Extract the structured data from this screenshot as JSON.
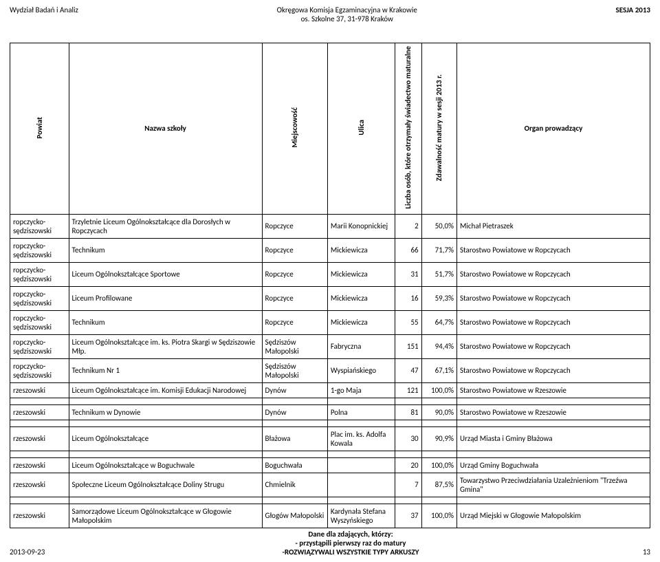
{
  "header": {
    "left": "Wydział Badań i Analiz",
    "center_line1": "Okręgowa Komisja Egzaminacyjna w Krakowie",
    "center_line2": "os. Szkolne 37, 31-978 Kraków",
    "right": "SESJA 2013"
  },
  "columns": {
    "powiat": "Powiat",
    "nazwa": "Nazwa szkoły",
    "miejscowosc": "Miejscowość",
    "ulica": "Ulica",
    "liczba": "Liczba osób, które otrzymały świadectwo maturalne",
    "zdawalnosc": "Zdawalność matury w sesji 2013 r.",
    "organ": "Organ prowadzący"
  },
  "rows": [
    {
      "powiat": "ropczycko-sędziszowski",
      "nazwa": "Trzyletnie Liceum Ogólnokształcące dla Dorosłych w Ropczycach",
      "miej": "Ropczyce",
      "ulica": "Marii Konopnickiej",
      "liczba": "2",
      "zdaw": "50,0%",
      "organ": "Michał Pietraszek"
    },
    {
      "powiat": "ropczycko-sędziszowski",
      "nazwa": "Technikum",
      "miej": "Ropczyce",
      "ulica": "Mickiewicza",
      "liczba": "66",
      "zdaw": "71,7%",
      "organ": "Starostwo Powiatowe w Ropczycach"
    },
    {
      "powiat": "ropczycko-sędziszowski",
      "nazwa": "Liceum Ogólnokształcące Sportowe",
      "miej": "Ropczyce",
      "ulica": "Mickiewicza",
      "liczba": "31",
      "zdaw": "51,7%",
      "organ": "Starostwo Powiatowe w Ropczycach"
    },
    {
      "powiat": "ropczycko-sędziszowski",
      "nazwa": "Liceum Profilowane",
      "miej": "Ropczyce",
      "ulica": "Mickiewicza",
      "liczba": "16",
      "zdaw": "59,3%",
      "organ": "Starostwo Powiatowe w Ropczycach"
    },
    {
      "powiat": "ropczycko-sędziszowski",
      "nazwa": "Technikum",
      "miej": "Ropczyce",
      "ulica": "Mickiewicza",
      "liczba": "55",
      "zdaw": "64,7%",
      "organ": "Starostwo Powiatowe w Ropczycach"
    },
    {
      "powiat": "ropczycko-sędziszowski",
      "nazwa": "Liceum Ogólnokształcące im. ks. Piotra Skargi w Sędziszowie Młp.",
      "miej": "Sędziszów Małopolski",
      "ulica": "Fabryczna",
      "liczba": "151",
      "zdaw": "94,4%",
      "organ": "Starostwo Powiatowe w Ropczycach"
    },
    {
      "powiat": "ropczycko-sędziszowski",
      "nazwa": "Technikum Nr 1",
      "miej": "Sędziszów Małopolski",
      "ulica": "Wyspiańskiego",
      "liczba": "47",
      "zdaw": "67,1%",
      "organ": "Starostwo Powiatowe w Ropczycach"
    },
    {
      "powiat": "rzeszowski",
      "nazwa": "Liceum Ogólnokształcące im. Komisji Edukacji Narodowej",
      "miej": "Dynów",
      "ulica": "1-go Maja",
      "liczba": "121",
      "zdaw": "100,0%",
      "organ": "Starostwo Powiatowe w Rzeszowie"
    },
    {
      "powiat": "rzeszowski",
      "nazwa": "Technikum w Dynowie",
      "miej": "Dynów",
      "ulica": "Polna",
      "liczba": "81",
      "zdaw": "90,0%",
      "organ": "Starostwo Powiatowe w Rzeszowie"
    },
    {
      "powiat": "rzeszowski",
      "nazwa": "Liceum Ogólnokształcące",
      "miej": "Błażowa",
      "ulica": "Plac im. ks. Adolfa Kowala",
      "liczba": "30",
      "zdaw": "90,9%",
      "organ": "Urząd Miasta i Gminy Błażowa"
    },
    {
      "powiat": "rzeszowski",
      "nazwa": "Liceum Ogólnokształcące w Boguchwale",
      "miej": "Boguchwała",
      "ulica": "",
      "liczba": "20",
      "zdaw": "100,0%",
      "organ": "Urząd Gminy Boguchwała"
    },
    {
      "powiat": "rzeszowski",
      "nazwa": "Społeczne Liceum Ogólnokształcące Doliny Strugu",
      "miej": "Chmielnik",
      "ulica": "",
      "liczba": "7",
      "zdaw": "87,5%",
      "organ": "Towarzystwo Przeciwdziałania Uzależnieniom \"Trzeźwa Gmina\""
    },
    {
      "powiat": "rzeszowski",
      "nazwa": "Samorządowe Liceum Ogólnokształcące w Głogowie Małopolskim",
      "miej": "Głogów Małopolski",
      "ulica": "Kardynała Stefana Wyszyńskiego",
      "liczba": "37",
      "zdaw": "100,0%",
      "organ": "Urząd Miejski w Głogowie Małopolskim"
    }
  ],
  "gaps_after": [
    7,
    8,
    9,
    11
  ],
  "footer": {
    "date": "2013-09-23",
    "line1": "Dane dla zdających, którzy:",
    "line2": "- przystąpili pierwszy raz do matury",
    "line3": "-ROZWIĄZYWALI WSZYSTKIE TYPY ARKUSZY",
    "page": "13"
  }
}
